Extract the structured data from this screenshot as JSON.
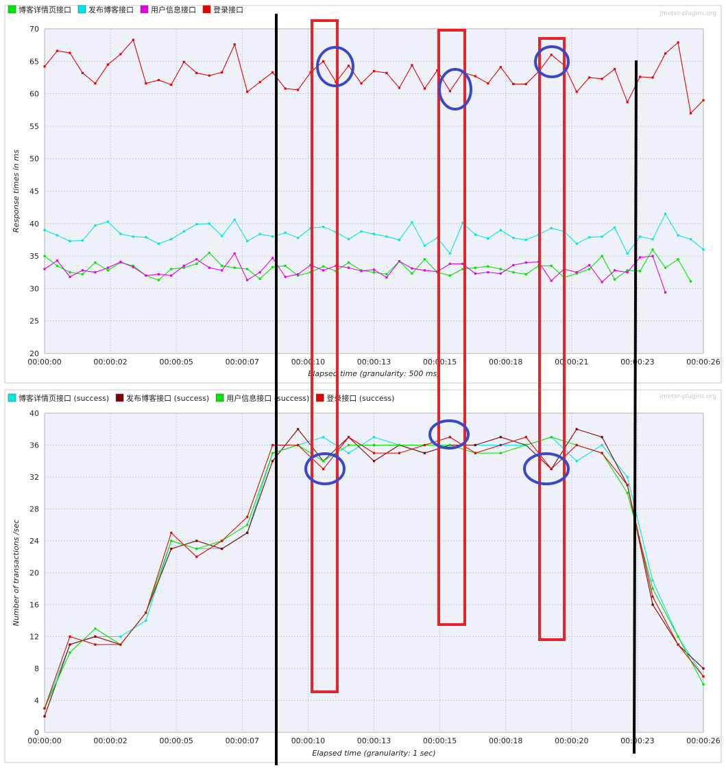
{
  "chart_data": [
    {
      "type": "line",
      "watermark": "jmeter-plugins.org",
      "xlabel": "Elapsed time (granularity: 500 ms)",
      "ylabel": "Response times in ms",
      "x_ticks": [
        "00:00:00",
        "00:00:02",
        "00:00:05",
        "00:00:07",
        "00:00:10",
        "00:00:13",
        "00:00:15",
        "00:00:18",
        "00:00:21",
        "00:00:23",
        "00:00:26"
      ],
      "y_ticks": [
        20,
        25,
        30,
        35,
        40,
        45,
        50,
        55,
        60,
        65,
        70
      ],
      "ylim": [
        20,
        70
      ],
      "xlim": [
        0,
        26
      ],
      "grid": true,
      "legend_position": "top-left",
      "series": [
        {
          "name": "博客详情页接口",
          "color": "#00e600",
          "x_step": 0.5,
          "values": [
            35,
            33.5,
            32.5,
            32.2,
            34,
            32.8,
            34,
            33.5,
            32,
            31.3,
            33,
            33.2,
            33.8,
            35.5,
            33.5,
            33.2,
            33,
            31.5,
            33.3,
            33.5,
            32,
            32.5,
            33.4,
            32.7,
            34,
            32.8,
            32.5,
            32.2,
            34.2,
            32.3,
            34.5,
            32.5,
            32,
            33,
            33.2,
            33.4,
            33,
            32.5,
            32.2,
            33.5,
            33.5,
            31.7,
            32.3,
            33,
            35,
            31.4,
            32.8,
            32.7,
            36,
            33.2,
            34.5,
            31.1
          ]
        },
        {
          "name": "发布博客接口",
          "color": "#00e6e6",
          "x_step": 0.5,
          "values": [
            39,
            38.2,
            37.3,
            37.4,
            39.7,
            40.3,
            38.4,
            38,
            37.9,
            36.9,
            37.6,
            38.8,
            39.9,
            40,
            38.1,
            40.6,
            37.3,
            38.4,
            38,
            38.6,
            37.8,
            39.3,
            39.5,
            38.7,
            37.6,
            38.8,
            38.4,
            38,
            37.5,
            40.2,
            36.6,
            37.8,
            35.4,
            40.1,
            38.3,
            37.7,
            39,
            37.8,
            37.5,
            38.3,
            39.3,
            38.8,
            36.9,
            37.9,
            38,
            39.4,
            35.4,
            38,
            37.6,
            41.5,
            38.2,
            37.6,
            36
          ]
        },
        {
          "name": "用户信息接口",
          "color": "#e600e6",
          "x_step": 0.5,
          "values": [
            33,
            34.3,
            31.8,
            32.8,
            32.5,
            33.2,
            34.1,
            33.3,
            32,
            32.2,
            32,
            33.5,
            34.5,
            33.2,
            32.8,
            35.4,
            31.3,
            32.5,
            34.7,
            31.8,
            32.2,
            33.6,
            32.8,
            33.5,
            33.2,
            32.7,
            32.9,
            31.7,
            34.2,
            33.1,
            32.8,
            32.6,
            33.8,
            33.8,
            32.3,
            32.5,
            32.3,
            33.6,
            34,
            34.1,
            31.2,
            33,
            32.5,
            33.6,
            31,
            32.8,
            32.5,
            34.8,
            35,
            29.4
          ]
        },
        {
          "name": "登录接口",
          "color": "#e60000",
          "x_step": 0.5,
          "values": [
            64.2,
            66.6,
            66.3,
            63.2,
            61.6,
            64.5,
            66.1,
            68.3,
            61.6,
            62.1,
            61.4,
            64.9,
            63.2,
            62.8,
            63.3,
            67.6,
            60.3,
            61.8,
            63.3,
            60.8,
            60.6,
            63.3,
            65,
            61.8,
            64.3,
            61.6,
            63.5,
            63.2,
            60.9,
            64.4,
            60.8,
            63.6,
            60.4,
            63.3,
            62.7,
            61.6,
            64.1,
            61.5,
            61.5,
            63.4,
            66,
            64.4,
            60.3,
            62.5,
            62.3,
            63.8,
            58.7,
            62.6,
            62.5,
            66.2,
            67.9,
            57,
            59
          ]
        }
      ]
    },
    {
      "type": "line",
      "watermark": "jmeter-plugins.org",
      "xlabel": "Elapsed time (granularity: 1 sec)",
      "ylabel": "Number of transactions /sec",
      "x_ticks": [
        "00:00:00",
        "00:00:02",
        "00:00:05",
        "00:00:07",
        "00:00:10",
        "00:00:13",
        "00:00:15",
        "00:00:18",
        "00:00:20",
        "00:00:23",
        "00:00:26"
      ],
      "y_ticks": [
        0,
        4,
        8,
        12,
        16,
        20,
        24,
        28,
        32,
        36,
        40
      ],
      "ylim": [
        0,
        40
      ],
      "xlim": [
        0,
        26
      ],
      "grid": true,
      "legend_position": "top-left",
      "series": [
        {
          "name": "博客详情页接口 (success)",
          "color": "#00e6e6",
          "x": [
            0,
            1,
            2,
            3,
            4,
            5,
            6,
            7,
            8,
            9,
            10,
            11,
            12,
            13,
            14,
            15,
            16,
            17,
            18,
            19,
            20,
            21,
            22,
            23,
            24,
            25,
            26
          ],
          "values": [
            3,
            11,
            12,
            12,
            14,
            24,
            23,
            23,
            25,
            35,
            36,
            37,
            35,
            37,
            36,
            35,
            36,
            36,
            36,
            36,
            37,
            34,
            36,
            32,
            19,
            12,
            7
          ]
        },
        {
          "name": "发布博客接口 (success)",
          "color": "#800000",
          "x": [
            0,
            1,
            2,
            3,
            4,
            5,
            6,
            7,
            8,
            9,
            10,
            11,
            12,
            13,
            14,
            15,
            16,
            17,
            18,
            19,
            20,
            21,
            22,
            23,
            24,
            25,
            26
          ],
          "values": [
            2,
            11,
            12,
            11,
            15,
            23,
            24,
            23,
            25,
            34,
            38,
            34,
            37,
            34,
            36,
            35,
            36,
            36,
            37,
            36,
            33,
            38,
            37,
            31,
            16,
            11,
            8
          ]
        },
        {
          "name": "用户信息接口 (success)",
          "color": "#00e600",
          "x": [
            0,
            1,
            2,
            3,
            4,
            5,
            6,
            7,
            8,
            9,
            10,
            11,
            12,
            13,
            14,
            15,
            16,
            17,
            18,
            19,
            20,
            21,
            22,
            23,
            24,
            25,
            26
          ],
          "values": [
            3,
            10,
            13,
            11,
            15,
            24,
            23,
            24,
            26,
            35,
            36,
            34,
            36,
            36,
            36,
            36,
            36,
            35,
            35,
            36,
            37,
            36,
            35,
            30,
            18,
            12,
            6
          ]
        },
        {
          "name": "登录接口 (success)",
          "color": "#e60000",
          "x": [
            0,
            1,
            2,
            3,
            4,
            5,
            6,
            7,
            8,
            9,
            10,
            11,
            12,
            13,
            14,
            15,
            16,
            17,
            18,
            19,
            20,
            21,
            22,
            23,
            24,
            25,
            26
          ],
          "values": [
            3,
            12,
            11,
            11,
            15,
            25,
            22,
            24,
            27,
            36,
            36,
            33,
            37,
            35,
            35,
            36,
            37,
            35,
            36,
            37,
            33,
            36,
            35,
            31,
            17,
            11,
            7
          ]
        }
      ]
    }
  ]
}
